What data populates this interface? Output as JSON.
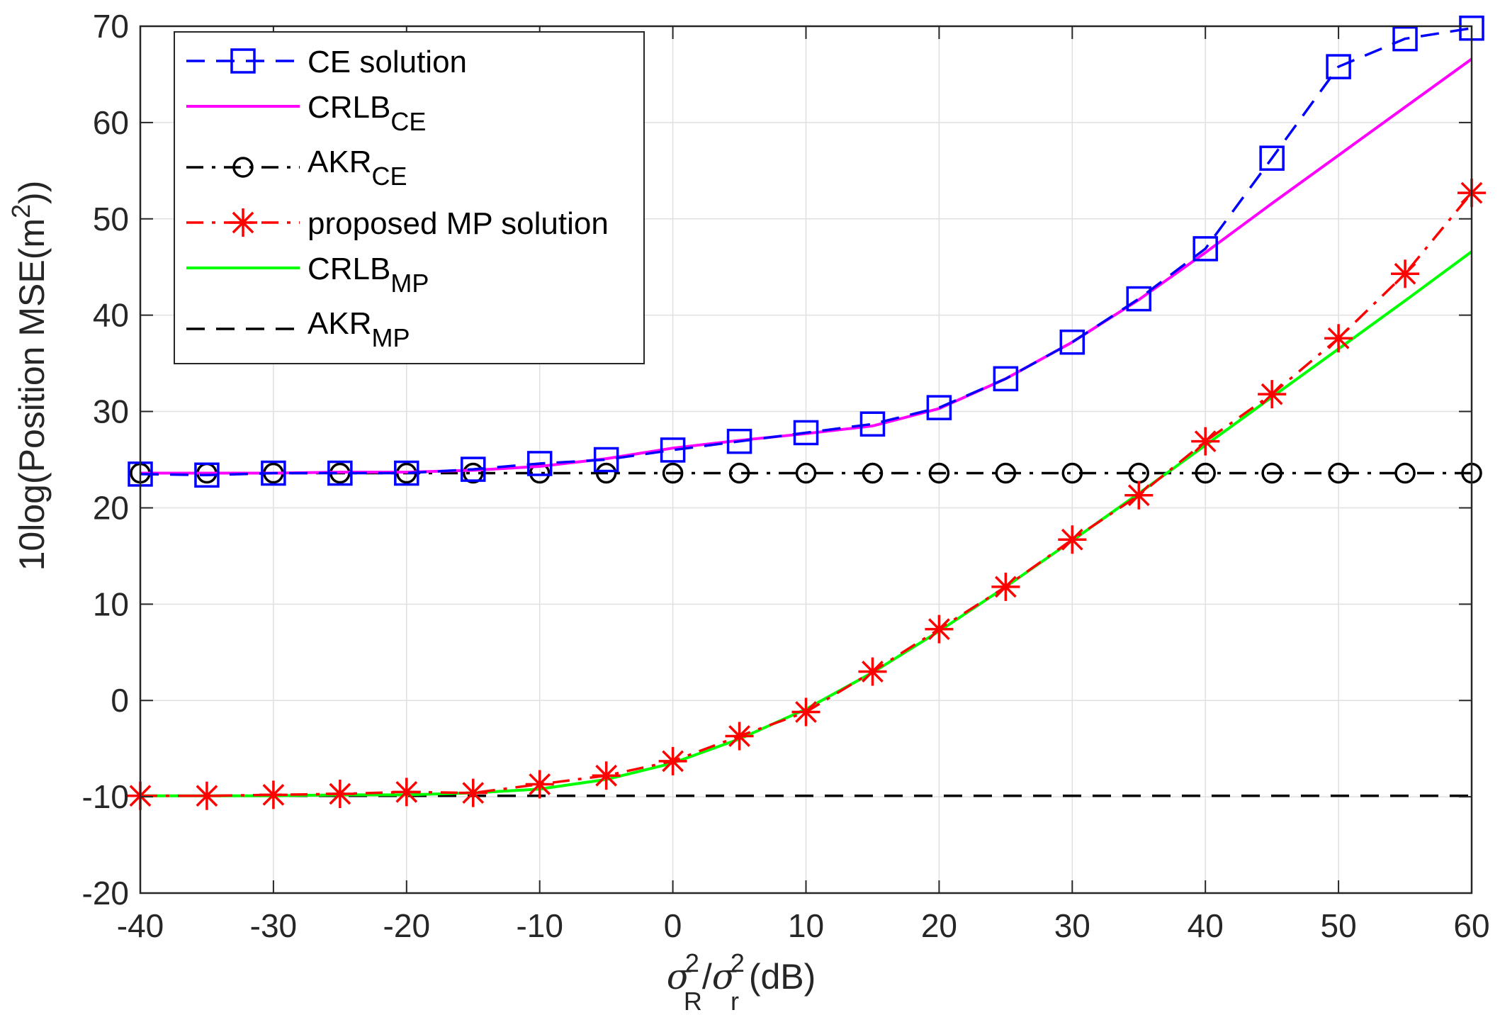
{
  "chart_data": {
    "type": "line",
    "title": "",
    "xlabel": {
      "parts": [
        "σ",
        "2",
        "R",
        "/",
        "σ",
        "2",
        "r",
        " (dB)"
      ]
    },
    "ylabel": {
      "parts": [
        "10log(Position MSE(m",
        "2",
        "))"
      ]
    },
    "xlim": [
      -40,
      60
    ],
    "ylim": [
      -20,
      70
    ],
    "xticks": [
      -40,
      -30,
      -20,
      -10,
      0,
      10,
      20,
      30,
      40,
      50,
      60
    ],
    "yticks": [
      -20,
      -10,
      0,
      10,
      20,
      30,
      40,
      50,
      60,
      70
    ],
    "xtick_labels": [
      "-40",
      "-30",
      "-20",
      "-10",
      "0",
      "10",
      "20",
      "30",
      "40",
      "50",
      "60"
    ],
    "ytick_labels": [
      "-20",
      "-10",
      "0",
      "10",
      "20",
      "30",
      "40",
      "50",
      "60",
      "70"
    ],
    "grid": true,
    "legend_position": "top-left",
    "x": [
      -40,
      -35,
      -30,
      -25,
      -20,
      -15,
      -10,
      -5,
      0,
      5,
      10,
      15,
      20,
      25,
      30,
      35,
      40,
      45,
      50,
      55,
      60
    ],
    "series": [
      {
        "name": "CE solution",
        "legend": {
          "main": "CE solution",
          "sub": ""
        },
        "color": "#0000ff",
        "line": "dash",
        "marker": "square",
        "values": [
          23.5,
          23.4,
          23.6,
          23.6,
          23.6,
          24.0,
          24.6,
          25.0,
          26.0,
          26.9,
          27.8,
          28.7,
          30.4,
          33.4,
          37.2,
          41.7,
          46.9,
          56.3,
          65.8,
          68.7,
          69.8
        ]
      },
      {
        "name": "CRLB_CE",
        "legend": {
          "main": "CRLB",
          "sub": "CE"
        },
        "color": "#ff00ff",
        "line": "solid",
        "marker": "none",
        "values": [
          23.6,
          23.6,
          23.6,
          23.7,
          23.7,
          23.9,
          24.3,
          25.1,
          26.2,
          27.0,
          27.7,
          28.5,
          30.3,
          33.4,
          37.2,
          41.6,
          46.5,
          51.6,
          56.6,
          61.6,
          66.6
        ]
      },
      {
        "name": "AKR_CE",
        "legend": {
          "main": "AKR",
          "sub": "CE"
        },
        "color": "#000000",
        "line": "dashdot",
        "marker": "circle",
        "values": [
          23.6,
          23.6,
          23.6,
          23.6,
          23.6,
          23.6,
          23.6,
          23.6,
          23.6,
          23.6,
          23.6,
          23.6,
          23.6,
          23.6,
          23.6,
          23.6,
          23.6,
          23.6,
          23.6,
          23.6,
          23.6
        ]
      },
      {
        "name": "proposed MP solution",
        "legend": {
          "main": "proposed MP solution",
          "sub": ""
        },
        "color": "#ff0000",
        "line": "dashdot",
        "marker": "asterisk",
        "values": [
          -9.9,
          -9.9,
          -9.8,
          -9.7,
          -9.5,
          -9.6,
          -8.7,
          -7.8,
          -6.3,
          -3.7,
          -1.2,
          3.0,
          7.4,
          11.8,
          16.7,
          21.3,
          26.9,
          31.8,
          37.6,
          44.3,
          52.7
        ]
      },
      {
        "name": "CRLB_MP",
        "legend": {
          "main": "CRLB",
          "sub": "MP"
        },
        "color": "#00ff00",
        "line": "solid",
        "marker": "none",
        "values": [
          -9.9,
          -9.9,
          -9.9,
          -9.8,
          -9.8,
          -9.6,
          -9.2,
          -8.2,
          -6.5,
          -4.0,
          -0.9,
          2.9,
          7.2,
          11.8,
          16.6,
          21.5,
          26.5,
          31.5,
          36.5,
          41.5,
          46.6
        ]
      },
      {
        "name": "AKR_MP",
        "legend": {
          "main": "AKR",
          "sub": "MP"
        },
        "color": "#000000",
        "line": "dash",
        "marker": "none",
        "values": [
          -9.9,
          -9.9,
          -9.9,
          -9.9,
          -9.9,
          -9.9,
          -9.9,
          -9.9,
          -9.9,
          -9.9,
          -9.9,
          -9.9,
          -9.9,
          -9.9,
          -9.9,
          -9.9,
          -9.9,
          -9.9,
          -9.9,
          -9.9,
          -9.9
        ]
      }
    ]
  }
}
